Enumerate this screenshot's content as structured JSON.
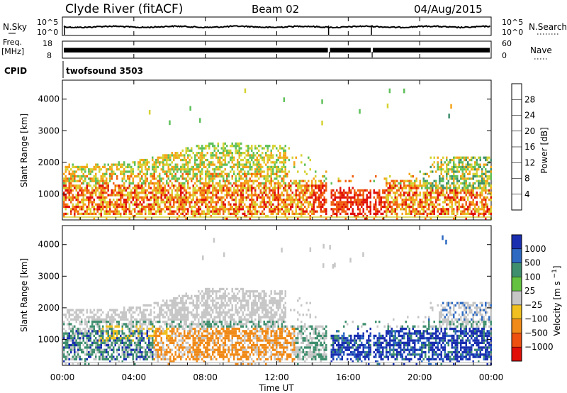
{
  "header": {
    "station": "Clyde River (fitACF)",
    "beam": "Beam 02",
    "date": "04/Aug/2015"
  },
  "top_panels": {
    "nsky_label": "N.Sky",
    "nsky_ticks": [
      "10^5",
      "10^0"
    ],
    "nsearch_label": "N.Search",
    "nsearch_ticks": [
      "10^5",
      "10^0"
    ],
    "freq_label": "Freq.",
    "freq_unit": "[MHz]",
    "freq_ticks": [
      "18",
      "8"
    ],
    "nave_label": "Nave",
    "nave_ticks": [
      "60",
      "0"
    ],
    "cpid_label": "CPID",
    "cpid_value": "twofsound 3503",
    "data_gaps_hours": [
      14.9,
      17.3
    ]
  },
  "chart_data": [
    {
      "type": "heatmap",
      "name": "power",
      "ylabel": "Slant Range [km]",
      "xlim": [
        0,
        24
      ],
      "ylim": [
        180,
        4600
      ],
      "y_ticks": [
        1000,
        2000,
        3000,
        4000
      ],
      "colorbar": {
        "label": "Power [dB]",
        "ticks": [
          "4",
          "8",
          "12",
          "16",
          "20",
          "24",
          "28"
        ],
        "colors": [
          "#0a1ff0",
          "#1f54b0",
          "#3f8f6e",
          "#5fc05a",
          "#d6d232",
          "#f5a418",
          "#f06010",
          "#e01008"
        ]
      }
    },
    {
      "type": "heatmap",
      "name": "velocity",
      "ylabel": "Slant Range [km]",
      "xlabel": "Time UT",
      "xlim": [
        0,
        24
      ],
      "ylim": [
        180,
        4600
      ],
      "x_ticks": [
        "00:00",
        "04:00",
        "08:00",
        "12:00",
        "16:00",
        "20:00",
        "00:00"
      ],
      "y_ticks": [
        1000,
        2000,
        3000,
        4000
      ],
      "colorbar": {
        "label": "Velocity [m s^-1]",
        "ticks": [
          "1000",
          "500",
          "100",
          "25",
          "-25",
          "-100",
          "-500",
          "-1000"
        ],
        "colors": [
          "#1a2fb0",
          "#2e6ac2",
          "#3f8f6e",
          "#64c240",
          "#c6c6c6",
          "#f0c020",
          "#f08a18",
          "#ee5010",
          "#e01008"
        ]
      }
    }
  ]
}
